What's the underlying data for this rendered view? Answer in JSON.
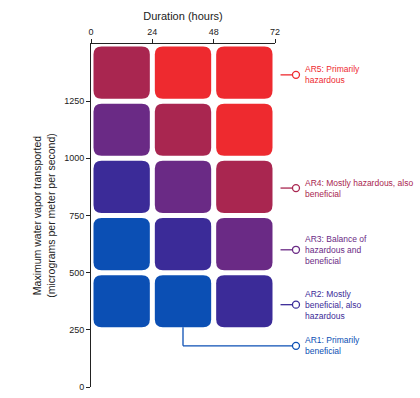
{
  "chart_data": {
    "type": "heatmap",
    "xlabel": "Duration (hours)",
    "ylabel": "Maximum water vapor transported\n(micrograms per meter per second)",
    "x_bins": [
      0,
      24,
      48,
      72
    ],
    "y_bins": [
      250,
      500,
      750,
      1000,
      1250,
      1500
    ],
    "cells": [
      [
        1,
        1,
        2
      ],
      [
        1,
        2,
        3
      ],
      [
        2,
        3,
        4
      ],
      [
        3,
        4,
        5
      ],
      [
        4,
        5,
        5
      ]
    ],
    "classes": [
      {
        "value": 5,
        "label": "AR5: Primarily\nhazardous",
        "color": "#ee2a2f"
      },
      {
        "value": 4,
        "label": "AR4: Mostly hazardous, also\nbeneficial",
        "color": "#a92650"
      },
      {
        "value": 3,
        "label": "AR3: Balance of\nhazardous and\nbeneficial",
        "color": "#6a2a85"
      },
      {
        "value": 2,
        "label": "AR2: Mostly\nbeneficial, also\nhazardous",
        "color": "#3b2b98"
      },
      {
        "value": 1,
        "label": "AR1: Primarily\nbeneficial",
        "color": "#0b4fb4"
      }
    ],
    "xlim": [
      0,
      72
    ],
    "xticks": [
      0,
      24,
      48,
      72
    ],
    "ylim": [
      0,
      1500
    ],
    "yticks": [
      0,
      250,
      500,
      750,
      1000,
      1250
    ],
    "grid": false
  }
}
